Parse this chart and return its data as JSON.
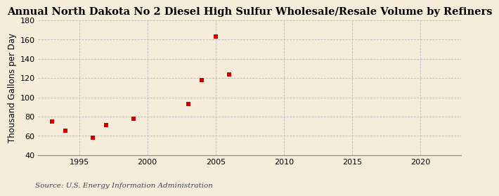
{
  "title": "Annual North Dakota No 2 Diesel High Sulfur Wholesale/Resale Volume by Refiners",
  "ylabel": "Thousand Gallons per Day",
  "source": "Source: U.S. Energy Information Administration",
  "background_color": "#f5edda",
  "plot_bg_color": "#f5edda",
  "data_points": [
    [
      1993,
      75
    ],
    [
      1994,
      65
    ],
    [
      1996,
      58
    ],
    [
      1997,
      71
    ],
    [
      1999,
      78
    ],
    [
      2003,
      93
    ],
    [
      2004,
      118
    ],
    [
      2005,
      163
    ],
    [
      2006,
      124
    ]
  ],
  "marker_color": "#cc0000",
  "marker_size": 5,
  "xlim": [
    1992,
    2023
  ],
  "ylim": [
    40,
    180
  ],
  "xticks": [
    1995,
    2000,
    2005,
    2010,
    2015,
    2020
  ],
  "yticks": [
    40,
    60,
    80,
    100,
    120,
    140,
    160,
    180
  ],
  "grid_color": "#bbbbbb",
  "title_fontsize": 10.5,
  "label_fontsize": 8.5,
  "tick_fontsize": 8,
  "source_fontsize": 7.5
}
